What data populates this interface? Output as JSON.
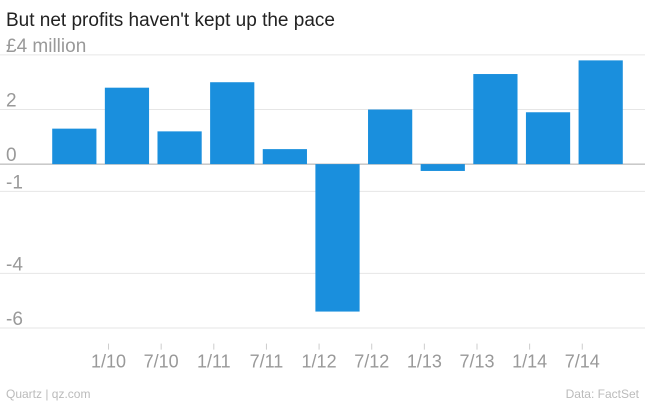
{
  "chart_data": {
    "type": "bar",
    "title": "But net profits haven't kept up the pace",
    "categories": [
      null,
      "1/10",
      "7/10",
      "1/11",
      "7/11",
      "1/12",
      "7/12",
      "1/13",
      "7/13",
      "1/14",
      "7/14"
    ],
    "values": [
      1.3,
      2.8,
      1.2,
      3.0,
      0.55,
      -5.4,
      2.0,
      -0.25,
      3.3,
      1.9,
      3.8
    ],
    "color": "#1a8fdd",
    "ylim": [
      -6.5,
      4.4
    ],
    "yticks": [
      {
        "value": 4,
        "label": "£4 million"
      },
      2,
      0,
      -1,
      -4,
      -6
    ],
    "grid": true,
    "source_left": "Quartz | qz.com",
    "source_right": "Data: FactSet"
  }
}
